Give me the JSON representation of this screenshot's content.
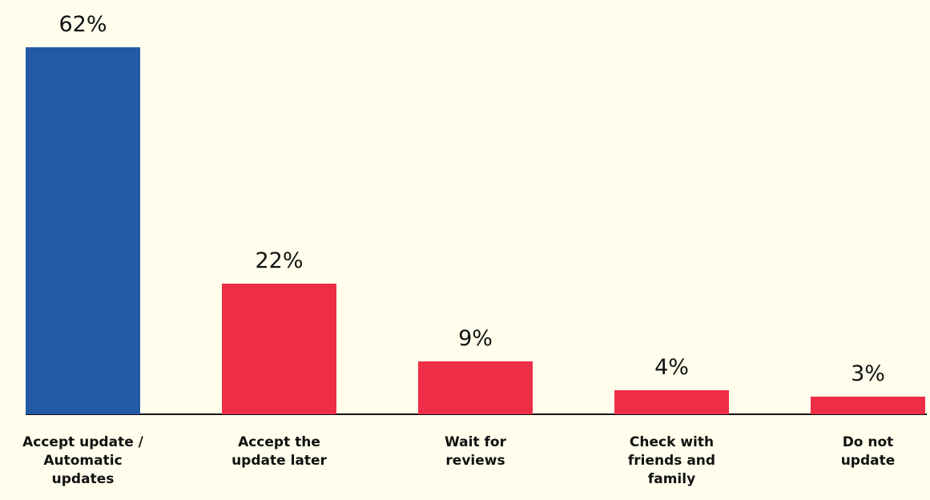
{
  "chart_data": {
    "type": "bar",
    "categories": [
      "Accept update / Automatic updates",
      "Accept the update later",
      "Wait for reviews",
      "Check with friends and family",
      "Do not update"
    ],
    "values": [
      62,
      22,
      9,
      4,
      3
    ],
    "value_labels": [
      "62%",
      "22%",
      "9%",
      "4%",
      "3%"
    ],
    "colors": [
      "#235aa6",
      "#ee2e47",
      "#ee2e47",
      "#ee2e47",
      "#ee2e47"
    ]
  }
}
